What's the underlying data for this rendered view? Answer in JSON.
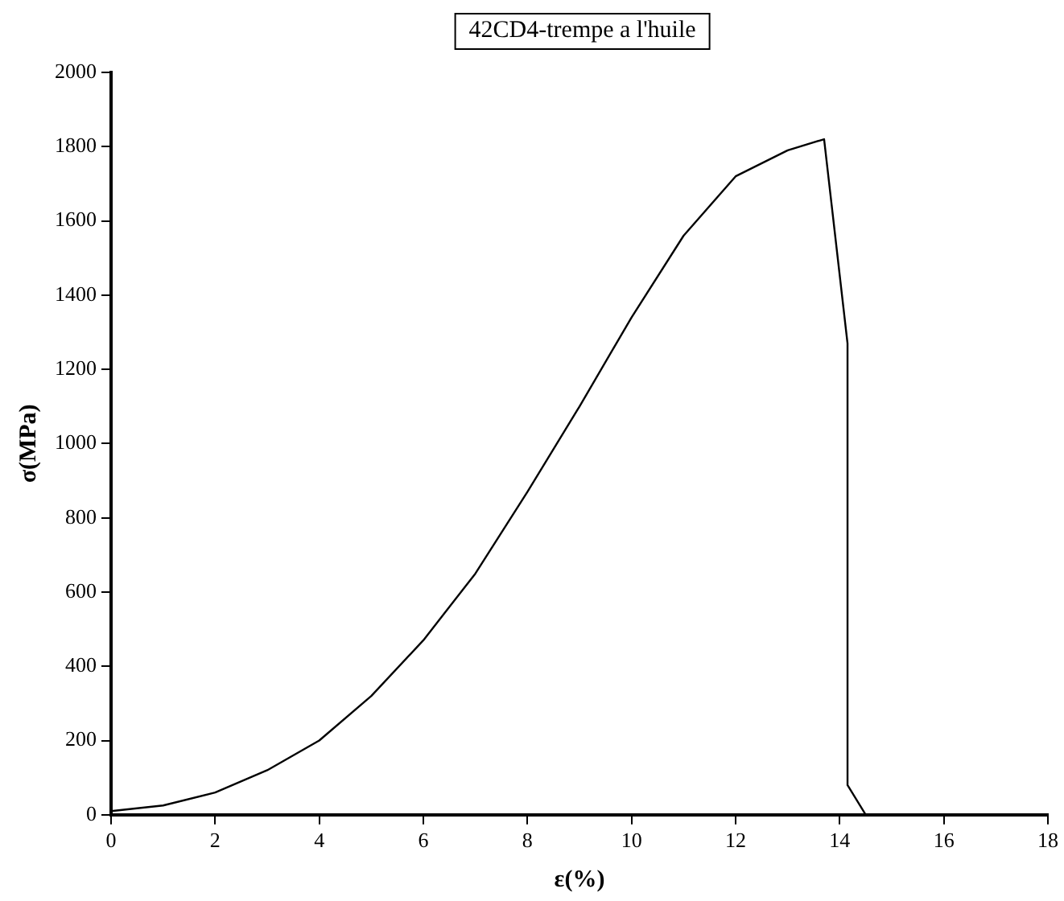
{
  "chart_data": {
    "type": "line",
    "title": "42CD4-trempe a l'huile",
    "xlabel": "ε(%)",
    "ylabel": "σ(MPa)",
    "series": [
      {
        "color": "#000000",
        "x": [
          0,
          1,
          2,
          3,
          4,
          5,
          6,
          7,
          8,
          9,
          10,
          11,
          12,
          13,
          13.7,
          14.15,
          14.15,
          14.5
        ],
        "values": [
          10,
          25,
          60,
          120,
          200,
          320,
          470,
          650,
          870,
          1100,
          1340,
          1560,
          1720,
          1790,
          1820,
          1270,
          80,
          0
        ]
      }
    ],
    "xlim": [
      0,
      18
    ],
    "xticks": [
      0,
      2,
      4,
      6,
      8,
      10,
      12,
      14,
      16,
      18
    ],
    "ylim": [
      0,
      2000
    ],
    "yticks": [
      0,
      200,
      400,
      600,
      800,
      1000,
      1200,
      1400,
      1600,
      1800,
      2000
    ],
    "grid": false,
    "legend": false,
    "marker": "none",
    "line_style": "solid"
  }
}
